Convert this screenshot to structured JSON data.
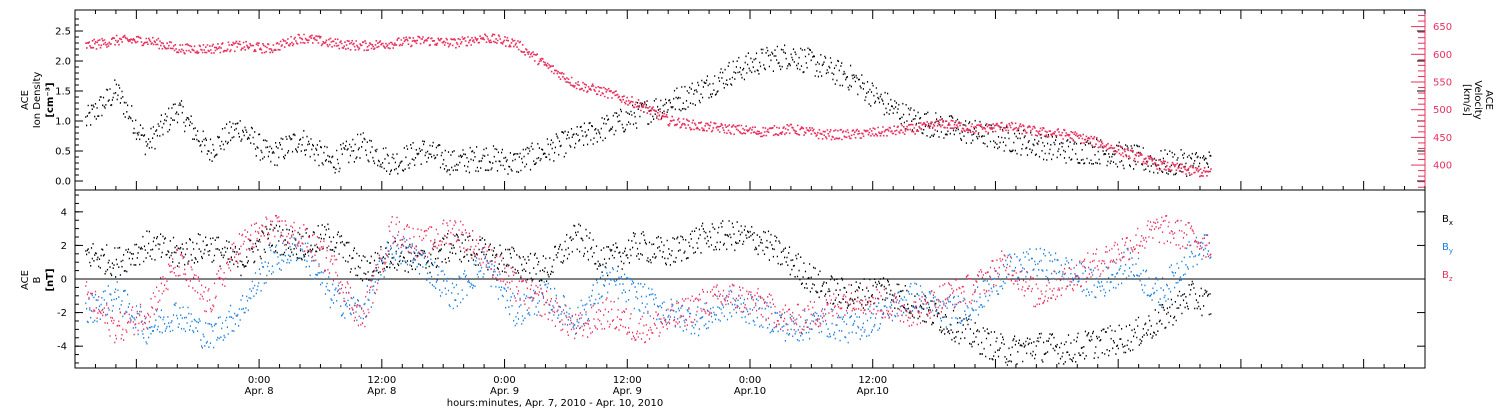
{
  "colors": {
    "black": "#000000",
    "red": "#e8305e",
    "blue": "#1a7fe0"
  },
  "chart_data": [
    {
      "type": "scatter",
      "panel": "density-velocity",
      "ylabel_left": {
        "line1": "ACE",
        "line2": "Ion Density",
        "unit": "[cm⁻³]"
      },
      "ylabel_right": {
        "line1": "ACE",
        "line2": "Velocity",
        "unit": "[km/s]"
      },
      "yticks_left": [
        "0.0",
        "0.5",
        "1.0",
        "1.5",
        "2.0",
        "2.5"
      ],
      "ylim_left": [
        -0.15,
        2.85
      ],
      "yticks_right": [
        "400",
        "450",
        "500",
        "550",
        "600",
        "650"
      ],
      "ylim_right": [
        355,
        680
      ],
      "series": [
        {
          "color": "black",
          "axis": "left",
          "points": [
            [
              -17,
              1.0
            ],
            [
              -14,
              1.5
            ],
            [
              -11,
              0.6
            ],
            [
              -8,
              1.2
            ],
            [
              -5,
              0.5
            ],
            [
              -2,
              0.9
            ],
            [
              1,
              0.4
            ],
            [
              4,
              0.7
            ],
            [
              7,
              0.3
            ],
            [
              10,
              0.6
            ],
            [
              13,
              0.3
            ],
            [
              16,
              0.5
            ],
            [
              19,
              0.3
            ],
            [
              22,
              0.4
            ],
            [
              25,
              0.3
            ],
            [
              28,
              0.5
            ],
            [
              31,
              0.7
            ],
            [
              34,
              0.9
            ],
            [
              37,
              1.1
            ],
            [
              40,
              1.3
            ],
            [
              43,
              1.5
            ],
            [
              46,
              1.8
            ],
            [
              49,
              2.0
            ],
            [
              52,
              2.1
            ],
            [
              55,
              1.9
            ],
            [
              58,
              1.7
            ],
            [
              61,
              1.3
            ],
            [
              64,
              1.0
            ],
            [
              67,
              0.9
            ],
            [
              70,
              0.8
            ],
            [
              73,
              0.7
            ],
            [
              76,
              0.6
            ],
            [
              79,
              0.5
            ],
            [
              82,
              0.5
            ],
            [
              85,
              0.4
            ],
            [
              88,
              0.3
            ],
            [
              91,
              0.3
            ],
            [
              93,
              0.3
            ]
          ]
        },
        {
          "color": "red",
          "axis": "right",
          "points": [
            [
              -17,
              615
            ],
            [
              -14,
              625
            ],
            [
              -11,
              625
            ],
            [
              -8,
              610
            ],
            [
              -5,
              610
            ],
            [
              -2,
              615
            ],
            [
              1,
              610
            ],
            [
              4,
              630
            ],
            [
              7,
              620
            ],
            [
              10,
              615
            ],
            [
              13,
              620
            ],
            [
              16,
              625
            ],
            [
              19,
              620
            ],
            [
              22,
              630
            ],
            [
              25,
              620
            ],
            [
              28,
              580
            ],
            [
              31,
              545
            ],
            [
              34,
              530
            ],
            [
              37,
              510
            ],
            [
              40,
              480
            ],
            [
              43,
              470
            ],
            [
              46,
              465
            ],
            [
              49,
              460
            ],
            [
              52,
              465
            ],
            [
              55,
              455
            ],
            [
              58,
              455
            ],
            [
              61,
              460
            ],
            [
              64,
              465
            ],
            [
              67,
              475
            ],
            [
              70,
              465
            ],
            [
              73,
              470
            ],
            [
              76,
              460
            ],
            [
              79,
              455
            ],
            [
              82,
              440
            ],
            [
              85,
              420
            ],
            [
              88,
              400
            ],
            [
              91,
              390
            ],
            [
              93,
              385
            ]
          ]
        }
      ]
    },
    {
      "type": "scatter",
      "panel": "magnetic-field",
      "ylabel_left": {
        "line1": "ACE",
        "line2": "B",
        "unit": "[nT]"
      },
      "yticks_left": [
        "-4",
        "-2",
        "0",
        "2",
        "4"
      ],
      "ylim_left": [
        -5.3,
        5.3
      ],
      "zero_line": 0,
      "legend_placement": "right",
      "series": [
        {
          "name": "Bx",
          "color": "black",
          "points": [
            [
              -17,
              1.5
            ],
            [
              -14,
              1.0
            ],
            [
              -11,
              2.0
            ],
            [
              -8,
              1.5
            ],
            [
              -5,
              2.0
            ],
            [
              -2,
              1.0
            ],
            [
              1,
              2.5
            ],
            [
              4,
              2.0
            ],
            [
              7,
              2.5
            ],
            [
              10,
              0.5
            ],
            [
              13,
              1.5
            ],
            [
              16,
              1.0
            ],
            [
              19,
              2.0
            ],
            [
              22,
              1.5
            ],
            [
              25,
              1.0
            ],
            [
              28,
              0.5
            ],
            [
              31,
              2.5
            ],
            [
              34,
              1.0
            ],
            [
              37,
              2.0
            ],
            [
              40,
              1.5
            ],
            [
              43,
              2.4
            ],
            [
              46,
              2.6
            ],
            [
              49,
              2.3
            ],
            [
              52,
              1.0
            ],
            [
              55,
              -0.5
            ],
            [
              58,
              -1.0
            ],
            [
              61,
              -0.5
            ],
            [
              64,
              -1.5
            ],
            [
              67,
              -2.5
            ],
            [
              70,
              -3.5
            ],
            [
              73,
              -4.3
            ],
            [
              76,
              -4.0
            ],
            [
              79,
              -4.2
            ],
            [
              82,
              -3.8
            ],
            [
              85,
              -3.5
            ],
            [
              88,
              -2.5
            ],
            [
              91,
              -1.0
            ],
            [
              93,
              -1.5
            ]
          ]
        },
        {
          "name": "By",
          "color": "blue",
          "points": [
            [
              -17,
              -2.0
            ],
            [
              -14,
              -1.0
            ],
            [
              -11,
              -3.0
            ],
            [
              -8,
              -2.0
            ],
            [
              -5,
              -3.5
            ],
            [
              -2,
              -2.0
            ],
            [
              1,
              1.0
            ],
            [
              4,
              2.0
            ],
            [
              7,
              -1.0
            ],
            [
              10,
              -2.0
            ],
            [
              13,
              2.0
            ],
            [
              16,
              1.0
            ],
            [
              19,
              -1.0
            ],
            [
              22,
              1.0
            ],
            [
              25,
              -2.0
            ],
            [
              28,
              -1.0
            ],
            [
              31,
              -2.5
            ],
            [
              34,
              0.0
            ],
            [
              37,
              -1.0
            ],
            [
              40,
              -2.0
            ],
            [
              43,
              -2.5
            ],
            [
              46,
              -1.5
            ],
            [
              49,
              -2.0
            ],
            [
              52,
              -3.0
            ],
            [
              55,
              -2.5
            ],
            [
              58,
              -3.0
            ],
            [
              61,
              -2.0
            ],
            [
              64,
              -1.0
            ],
            [
              67,
              -2.0
            ],
            [
              70,
              -1.5
            ],
            [
              73,
              0.5
            ],
            [
              76,
              1.0
            ],
            [
              79,
              0.5
            ],
            [
              82,
              -0.5
            ],
            [
              85,
              1.0
            ],
            [
              88,
              -1.0
            ],
            [
              91,
              1.5
            ],
            [
              93,
              2.0
            ]
          ]
        },
        {
          "name": "Bz",
          "color": "red",
          "points": [
            [
              -17,
              -1.0
            ],
            [
              -14,
              -3.0
            ],
            [
              -11,
              -2.0
            ],
            [
              -8,
              1.0
            ],
            [
              -5,
              -1.5
            ],
            [
              -2,
              2.0
            ],
            [
              1,
              3.0
            ],
            [
              4,
              2.5
            ],
            [
              7,
              1.0
            ],
            [
              10,
              -2.5
            ],
            [
              13,
              3.0
            ],
            [
              16,
              2.0
            ],
            [
              19,
              3.0
            ],
            [
              22,
              1.5
            ],
            [
              25,
              -0.5
            ],
            [
              28,
              -1.5
            ],
            [
              31,
              -3.0
            ],
            [
              34,
              -2.0
            ],
            [
              37,
              -3.0
            ],
            [
              40,
              -2.5
            ],
            [
              43,
              -1.5
            ],
            [
              46,
              -1.0
            ],
            [
              49,
              -1.5
            ],
            [
              52,
              -2.5
            ],
            [
              55,
              -2.0
            ],
            [
              58,
              -1.0
            ],
            [
              61,
              -1.5
            ],
            [
              64,
              -2.0
            ],
            [
              67,
              -1.0
            ],
            [
              70,
              -0.5
            ],
            [
              73,
              1.0
            ],
            [
              76,
              -1.0
            ],
            [
              79,
              0.0
            ],
            [
              82,
              1.0
            ],
            [
              85,
              2.0
            ],
            [
              88,
              3.0
            ],
            [
              91,
              2.5
            ],
            [
              93,
              2.0
            ]
          ]
        }
      ]
    }
  ],
  "x_axis": {
    "xlim": [
      -18,
      114
    ],
    "ticks": [
      {
        "hour": 0,
        "time": "0:00",
        "date": "Apr. 8"
      },
      {
        "hour": 12,
        "time": "12:00",
        "date": "Apr. 8"
      },
      {
        "hour": 24,
        "time": "0:00",
        "date": "Apr. 9"
      },
      {
        "hour": 36,
        "time": "12:00",
        "date": "Apr. 9"
      },
      {
        "hour": 48,
        "time": "0:00",
        "date": "Apr.10"
      },
      {
        "hour": 60,
        "time": "12:00",
        "date": "Apr.10"
      }
    ],
    "label": "hours:minutes, Apr.  7, 2010 - Apr. 10, 2010"
  }
}
